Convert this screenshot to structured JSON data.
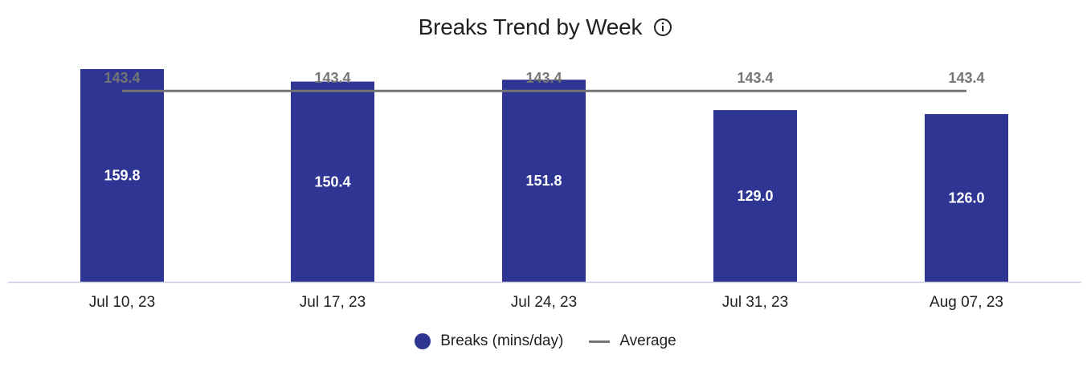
{
  "header": {
    "title": "Breaks Trend by Week",
    "info_icon": "info-icon"
  },
  "colors": {
    "bar": "#2e3592",
    "average_line": "#757575",
    "average_label": "#757575",
    "bar_label": "#ffffff",
    "axis": "#c9c9e6",
    "tick_text": "#202124"
  },
  "legend": {
    "position": "bottom",
    "items": [
      {
        "label": "Breaks (mins/day)",
        "marker": "circle"
      },
      {
        "label": "Average",
        "marker": "line"
      }
    ]
  },
  "chart_data": {
    "type": "bar",
    "title": "Breaks Trend by Week",
    "categories": [
      "Jul 10, 23",
      "Jul 17, 23",
      "Jul 24, 23",
      "Jul 31, 23",
      "Aug 07, 23"
    ],
    "series": [
      {
        "name": "Breaks (mins/day)",
        "type": "bar",
        "values": [
          159.8,
          150.4,
          151.8,
          129.0,
          126.0
        ],
        "labels": [
          "159.8",
          "150.4",
          "151.8",
          "129.0",
          "126.0"
        ]
      },
      {
        "name": "Average",
        "type": "line",
        "values": [
          143.4,
          143.4,
          143.4,
          143.4,
          143.4
        ],
        "labels": [
          "143.4",
          "143.4",
          "143.4",
          "143.4",
          "143.4"
        ]
      }
    ],
    "ylim": [
      0,
      159.8
    ],
    "xlabel": "",
    "ylabel": "",
    "grid": false,
    "legend": "bottom"
  }
}
